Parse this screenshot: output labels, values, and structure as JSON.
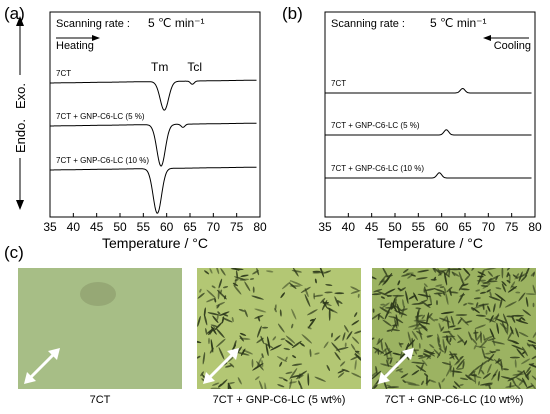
{
  "panels": {
    "a": "(a)",
    "b": "(b)",
    "c": "(c)"
  },
  "axis_label_left": "Exo.",
  "axis_label_right": "Endo.",
  "chart_data": [
    {
      "type": "line",
      "panel": "(a)",
      "annotation": "Scanning rate :",
      "rate": "5 ℃ min⁻¹",
      "direction": "Heating",
      "xlabel": "Temperature / °C",
      "ylabel_top": "Exo.",
      "ylabel_bottom": "Endo.",
      "xlim": [
        35,
        80
      ],
      "xticks": [
        "35",
        "40",
        "45",
        "50",
        "55",
        "60",
        "65",
        "70",
        "75",
        "80"
      ],
      "peak_labels": [
        {
          "text": "Tm",
          "x": 58.5
        },
        {
          "text": "Tcl",
          "x": 66
        }
      ],
      "series": [
        {
          "name": "7CT",
          "peaks": [
            {
              "x": 59.5,
              "depth": -0.18
            },
            {
              "x": 65.5,
              "depth": -0.02
            }
          ]
        },
        {
          "name": "7CT + GNP-C6-LC (5 %)",
          "peaks": [
            {
              "x": 58.8,
              "depth": -0.26
            },
            {
              "x": 63.5,
              "depth": -0.02
            }
          ]
        },
        {
          "name": "7CT + GNP-C6-LC (10 %)",
          "peaks": [
            {
              "x": 58.0,
              "depth": -0.28
            }
          ]
        }
      ]
    },
    {
      "type": "line",
      "panel": "(b)",
      "annotation": "Scanning rate :",
      "rate": "5 ℃ min⁻¹",
      "direction": "Cooling",
      "xlabel": "Temperature / °C",
      "xlim": [
        35,
        80
      ],
      "xticks": [
        "35",
        "40",
        "45",
        "50",
        "55",
        "60",
        "65",
        "70",
        "75",
        "80"
      ],
      "series": [
        {
          "name": "7CT",
          "peaks": [
            {
              "x": 64.5,
              "height": 0.03
            }
          ]
        },
        {
          "name": "7CT + GNP-C6-LC (5 %)",
          "peaks": [
            {
              "x": 61.0,
              "height": 0.035
            }
          ]
        },
        {
          "name": "7CT + GNP-C6-LC (10 %)",
          "peaks": [
            {
              "x": 59.5,
              "height": 0.035
            }
          ]
        }
      ]
    }
  ],
  "micrographs": [
    {
      "caption": "7CT",
      "base_color": "#a7be86",
      "particle_density": 0
    },
    {
      "caption": "7CT + GNP-C6-LC (5 wt%)",
      "base_color": "#b3c774",
      "particle_density": 0.5
    },
    {
      "caption": "7CT + GNP-C6-LC (10 wt%)",
      "base_color": "#9cb362",
      "particle_density": 1
    }
  ]
}
